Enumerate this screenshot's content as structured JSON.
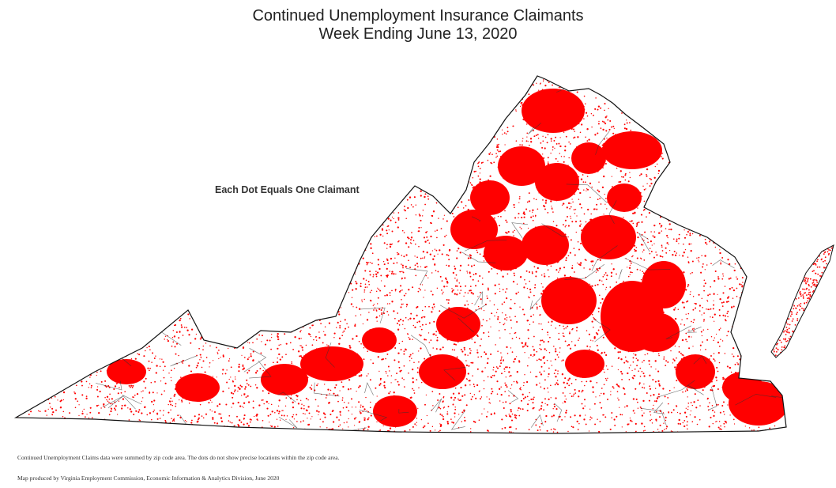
{
  "map": {
    "title_line1": "Continued Unemployment Insurance Claimants",
    "title_line2": "Week Ending June 13, 2020",
    "legend_note": "Each Dot Equals One Claimant",
    "footnote_1": "Continued Unemployment Claims data were summed by zip code area. The dots do not show precise locations within the zip code area.",
    "footnote_2": "Map produced by Virginia Employment Commission, Economic Information & Analytics Division,  June 2020",
    "dot_color": "#ff0000",
    "boundary_color": "#222222",
    "background_color": "#ffffff",
    "region": "Virginia"
  }
}
